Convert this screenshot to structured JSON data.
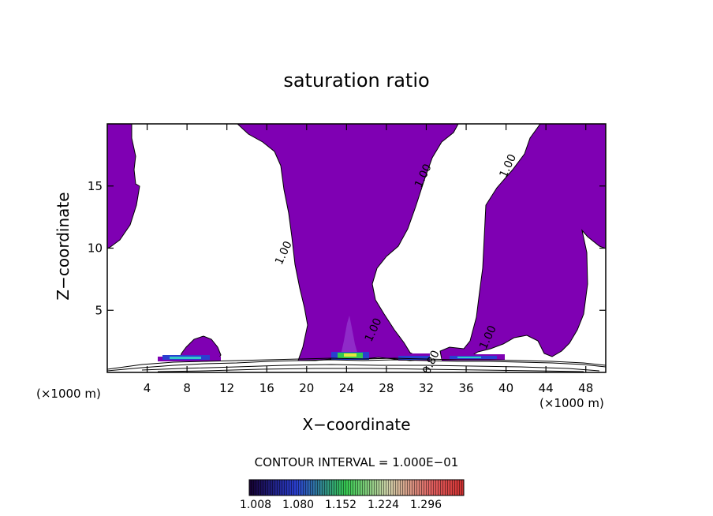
{
  "chart_data": {
    "type": "heatmap",
    "title": "saturation ratio",
    "xlabel": "X−coordinate",
    "ylabel": "Z−coordinate",
    "x_unit_label": "(×1000 m)",
    "x_ticks": [
      4,
      8,
      12,
      16,
      20,
      24,
      28,
      32,
      36,
      40,
      44,
      48
    ],
    "y_ticks": [
      5,
      10,
      15
    ],
    "xlim": [
      0,
      50
    ],
    "ylim": [
      0,
      20
    ],
    "contour_labels": [
      {
        "text": "1.00",
        "x": 18.0,
        "y": 9.5
      },
      {
        "text": "1.00",
        "x": 32.0,
        "y": 15.7
      },
      {
        "text": "1.00",
        "x": 40.5,
        "y": 16.5
      },
      {
        "text": "1.00",
        "x": 27.0,
        "y": 3.3
      },
      {
        "text": "1.00",
        "x": 38.5,
        "y": 2.7
      },
      {
        "text": "0.80",
        "x": 32.8,
        "y": 0.7
      }
    ],
    "contour_interval_text": "CONTOUR INTERVAL = 1.000E−01",
    "colorbar": {
      "ticks": [
        "1.008",
        "1.080",
        "1.152",
        "1.224",
        "1.296"
      ],
      "colors": [
        "#1a004d",
        "#2f6fff",
        "#3ccf4a",
        "#c9c9a0",
        "#e03a3a"
      ]
    },
    "fill_color": "#7f00b3"
  }
}
